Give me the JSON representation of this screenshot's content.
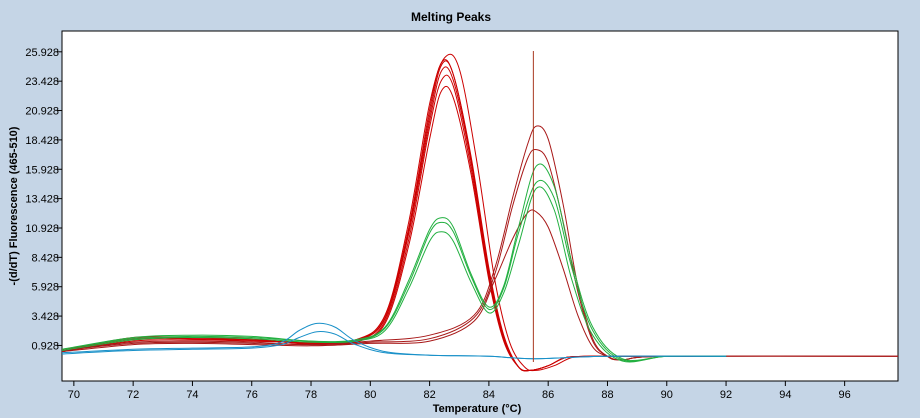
{
  "chart_data": {
    "type": "line",
    "title": "Melting Peaks",
    "xlabel": "Temperature (°C)",
    "ylabel": "-(d/dT) Fluorescence (465-510)",
    "xlim": [
      69.6,
      97.8
    ],
    "ylim": [
      -2.1,
      27.7
    ],
    "xticks": [
      "70",
      "72",
      "74",
      "76",
      "78",
      "80",
      "82",
      "84",
      "86",
      "88",
      "90",
      "92",
      "94",
      "96"
    ],
    "yticks": [
      "0.928",
      "3.428",
      "5.928",
      "8.428",
      "10.928",
      "13.428",
      "15.928",
      "18.428",
      "20.928",
      "23.428",
      "25.928"
    ],
    "grid": false,
    "legend": "none",
    "cursor_x": 85.5,
    "colors": {
      "red": "#cc0000",
      "darkred": "#a81818",
      "green": "#22b040",
      "blue": "#1890c8",
      "cursor": "#a83820"
    },
    "series": [
      {
        "color": "red",
        "x": [
          69.6,
          72,
          74,
          76,
          78,
          79.5,
          80.5,
          81.3,
          82,
          82.4,
          82.8,
          83.4,
          84,
          84.5,
          85,
          85.4,
          86,
          86.6,
          87.5,
          88.5,
          92
        ],
        "y": [
          0.5,
          1.5,
          1.6,
          1.4,
          1.1,
          1.3,
          3.5,
          11,
          21,
          25,
          24,
          17,
          7.5,
          1.8,
          -0.9,
          -1.2,
          -0.8,
          -0.1,
          0,
          0,
          0
        ]
      },
      {
        "color": "red",
        "x": [
          69.6,
          72,
          74,
          76,
          78,
          79.5,
          80.5,
          81.3,
          82,
          82.4,
          82.8,
          83.4,
          84,
          84.5,
          85,
          85.4,
          86,
          86.6,
          87.5,
          88.5,
          92
        ],
        "y": [
          0.4,
          1.4,
          1.5,
          1.3,
          1.2,
          1.4,
          3.2,
          10.5,
          20,
          24.3,
          23.5,
          16.5,
          7,
          1.5,
          -0.9,
          -1.2,
          -0.8,
          -0.1,
          0,
          0,
          0
        ]
      },
      {
        "color": "red",
        "x": [
          69.6,
          72,
          74,
          76,
          78,
          79.5,
          80.5,
          81.3,
          82,
          82.4,
          82.8,
          83.4,
          84,
          84.5,
          85,
          85.4,
          86,
          86.6,
          87.5,
          88.5,
          92
        ],
        "y": [
          0.5,
          1.6,
          1.6,
          1.5,
          1.0,
          1.2,
          3.0,
          10,
          19.5,
          23.5,
          23,
          16,
          6.8,
          1.4,
          -0.9,
          -1.2,
          -0.8,
          -0.1,
          0,
          0,
          0
        ]
      },
      {
        "color": "red",
        "x": [
          69.6,
          72,
          74,
          76,
          78,
          79.5,
          80.5,
          81.3,
          82,
          82.5,
          83,
          83.6,
          84.2,
          84.7,
          85.2,
          85.6,
          86.2,
          86.8,
          87.5,
          88.5,
          92
        ],
        "y": [
          0.5,
          1.5,
          1.5,
          1.4,
          1.1,
          1.4,
          3.5,
          11.5,
          21.5,
          25.4,
          24.5,
          16.5,
          6.5,
          1.2,
          -0.9,
          -1.2,
          -0.8,
          -0.1,
          0,
          0,
          0
        ]
      },
      {
        "color": "red",
        "x": [
          69.6,
          72,
          74,
          76,
          78,
          79.5,
          80.5,
          81.3,
          82,
          82.4,
          82.8,
          83.4,
          84,
          84.5,
          85,
          85.4,
          86,
          86.6,
          87.5,
          88.5,
          92
        ],
        "y": [
          0.4,
          1.3,
          1.4,
          1.3,
          1.2,
          1.3,
          2.8,
          9.5,
          18.5,
          22.6,
          22,
          15.5,
          6.5,
          1.3,
          -0.9,
          -1.2,
          -0.8,
          -0.1,
          0,
          0,
          0
        ]
      },
      {
        "color": "red",
        "x": [
          69.6,
          72,
          74,
          76,
          78,
          79.5,
          80.5,
          81.3,
          82,
          82.4,
          82.8,
          83.4,
          84,
          84.5,
          85,
          85.4,
          86,
          86.6,
          87.5,
          88.5,
          92
        ],
        "y": [
          0.5,
          1.5,
          1.5,
          1.4,
          1.1,
          1.3,
          3.3,
          10.8,
          20.5,
          24.8,
          24,
          16.8,
          7.2,
          1.6,
          -0.9,
          -1.2,
          -0.8,
          -0.1,
          0,
          0,
          0
        ]
      },
      {
        "color": "darkred",
        "x": [
          69.6,
          72,
          74,
          76,
          78,
          80,
          82,
          83.5,
          84.2,
          84.8,
          85.3,
          85.6,
          86,
          86.5,
          87,
          87.5,
          88,
          88.5,
          90,
          97.8
        ],
        "y": [
          0.5,
          1.2,
          1.3,
          1.2,
          1.0,
          1.3,
          1.8,
          3.5,
          7.5,
          13.5,
          18,
          19.6,
          18.5,
          13,
          6,
          1.5,
          0,
          -0.3,
          0,
          0
        ]
      },
      {
        "color": "darkred",
        "x": [
          69.6,
          72,
          74,
          76,
          78,
          80,
          82,
          83.5,
          84.2,
          84.8,
          85.3,
          85.6,
          86,
          86.5,
          87,
          87.5,
          88,
          88.5,
          90,
          97.8
        ],
        "y": [
          0.5,
          1.1,
          1.2,
          1.1,
          1.0,
          1.2,
          1.5,
          3.3,
          7,
          12.8,
          16.8,
          17.6,
          16.5,
          11.5,
          5.5,
          1.3,
          0,
          -0.3,
          0,
          0
        ]
      },
      {
        "color": "darkred",
        "x": [
          69.6,
          72,
          74,
          76,
          78,
          80,
          82,
          83.5,
          84.2,
          84.8,
          85.3,
          85.6,
          86,
          86.5,
          87,
          87.5,
          88,
          88.5,
          90,
          97.8
        ],
        "y": [
          0.4,
          1.0,
          1.1,
          1.0,
          0.9,
          1.1,
          1.3,
          3.0,
          6.5,
          10,
          12.2,
          12.3,
          11,
          7.5,
          3.5,
          0.8,
          0,
          -0.3,
          0,
          0
        ]
      },
      {
        "color": "green",
        "x": [
          69.6,
          72,
          74,
          76,
          78,
          79.5,
          80.5,
          81.3,
          82,
          82.4,
          82.8,
          83.4,
          84,
          84.5,
          85,
          85.6,
          86.2,
          86.8,
          87.5,
          88.5,
          90,
          92
        ],
        "y": [
          0.6,
          1.6,
          1.8,
          1.7,
          1.3,
          1.4,
          2.5,
          6.5,
          10.8,
          11.8,
          11,
          7,
          4.2,
          6,
          11,
          16.2,
          14.5,
          8,
          2.5,
          -0.2,
          0,
          0
        ]
      },
      {
        "color": "green",
        "x": [
          69.6,
          72,
          74,
          76,
          78,
          79.5,
          80.5,
          81.3,
          82,
          82.4,
          82.8,
          83.4,
          84,
          84.5,
          85,
          85.6,
          86.2,
          86.8,
          87.5,
          88.5,
          90,
          92
        ],
        "y": [
          0.6,
          1.5,
          1.7,
          1.6,
          1.3,
          1.3,
          2.4,
          6.2,
          10.5,
          11.4,
          10.6,
          6.8,
          4.0,
          5.8,
          10.5,
          14.8,
          13.5,
          7.5,
          2.2,
          -0.3,
          0,
          0
        ]
      },
      {
        "color": "green",
        "x": [
          69.6,
          72,
          74,
          76,
          78,
          79.5,
          80.5,
          81.3,
          82,
          82.4,
          82.8,
          83.4,
          84,
          84.5,
          85,
          85.6,
          86.2,
          86.8,
          87.5,
          88.5,
          90,
          92
        ],
        "y": [
          0.5,
          1.4,
          1.6,
          1.5,
          1.2,
          1.3,
          2.2,
          5.8,
          9.8,
          10.6,
          9.8,
          6.3,
          3.7,
          5.4,
          9.5,
          14.3,
          12.5,
          6.5,
          1.8,
          -0.4,
          0,
          0
        ]
      },
      {
        "color": "blue",
        "x": [
          69.6,
          72,
          74,
          76,
          77,
          77.6,
          78.2,
          78.8,
          79.5,
          80.5,
          82,
          84,
          85.5,
          88,
          92
        ],
        "y": [
          0.3,
          0.6,
          0.7,
          0.8,
          1.2,
          2.2,
          2.8,
          2.5,
          1.3,
          0.4,
          0.1,
          0,
          -0.2,
          0,
          0
        ]
      },
      {
        "color": "blue",
        "x": [
          69.6,
          72,
          74,
          76,
          77,
          77.6,
          78.2,
          78.8,
          79.5,
          80.5,
          82,
          84,
          85.5,
          88,
          92
        ],
        "y": [
          0.2,
          0.5,
          0.6,
          0.7,
          1.0,
          1.6,
          2.1,
          1.9,
          1.0,
          0.3,
          0.1,
          0,
          -0.2,
          0,
          0
        ]
      }
    ]
  }
}
